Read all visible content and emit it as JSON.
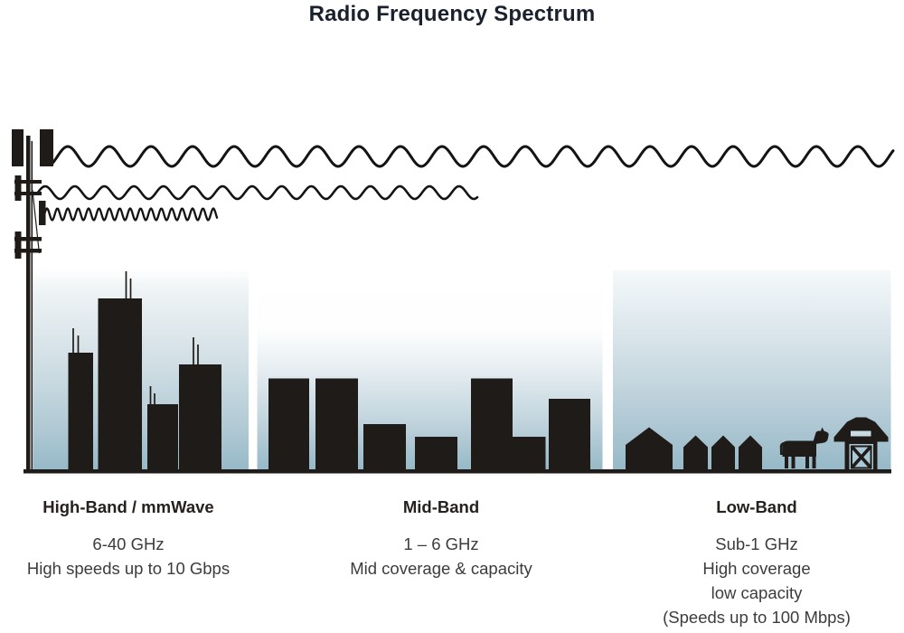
{
  "title": "Radio Frequency Spectrum",
  "bands": [
    {
      "name": "High-Band / mmWave",
      "specs": [
        "6-40 GHz",
        "High speeds up to 10 Gbps"
      ]
    },
    {
      "name": "Mid-Band",
      "specs": [
        "1 – 6 GHz",
        "Mid coverage & capacity"
      ]
    },
    {
      "name": "Low-Band",
      "specs": [
        "Sub-1 GHz",
        "High coverage",
        "low capacity",
        "(Speeds up to 100 Mbps)"
      ]
    }
  ],
  "illustration": {
    "tower": "cell-tower",
    "waves": [
      {
        "name": "long-wavelength-wave",
        "band": "Low-Band",
        "reach": "longest"
      },
      {
        "name": "medium-wavelength-wave",
        "band": "Mid-Band",
        "reach": "medium"
      },
      {
        "name": "short-wavelength-wave",
        "band": "High-Band / mmWave",
        "reach": "shortest"
      }
    ],
    "scenes": [
      {
        "name": "skyscrapers",
        "band": "High-Band / mmWave"
      },
      {
        "name": "mid-rise-buildings",
        "band": "Mid-Band"
      },
      {
        "name": "houses-cow-barn",
        "band": "Low-Band"
      }
    ]
  },
  "colors": {
    "ink": "#1f1b18",
    "sky_bottom": "#97b9c8",
    "background": "#ffffff",
    "title_text": "#1a212e",
    "body_text": "#3c3c3c"
  }
}
